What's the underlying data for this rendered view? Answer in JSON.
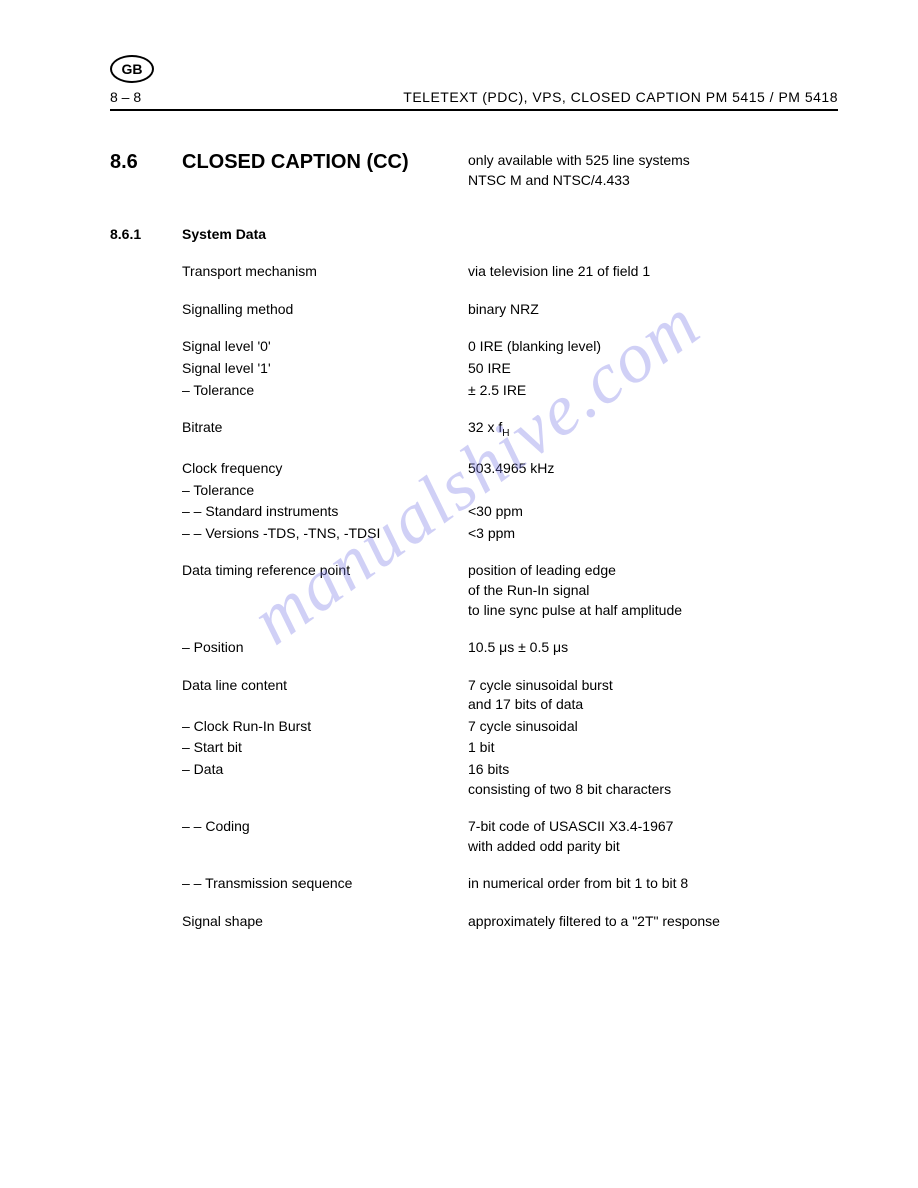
{
  "header": {
    "badge": "GB",
    "page_num": "8 – 8",
    "title": "TELETEXT (PDC), VPS, CLOSED CAPTION   PM 5415 / PM 5418"
  },
  "section": {
    "num": "8.6",
    "title": "CLOSED CAPTION (CC)",
    "note_line1": "only available with 525 line systems",
    "note_line2": "NTSC M and NTSC/4.433"
  },
  "subsection": {
    "num": "8.6.1",
    "title": "System Data"
  },
  "rows": {
    "transport_label": "Transport mechanism",
    "transport_value": "via television line 21 of field 1",
    "signalling_label": "Signalling method",
    "signalling_value": "binary NRZ",
    "level0_label": "Signal level '0'",
    "level0_value": "0 IRE (blanking level)",
    "level1_label": "Signal level '1'",
    "level1_value": "50 IRE",
    "tolerance_label": "–  Tolerance",
    "tolerance_value": "± 2.5 IRE",
    "bitrate_label": "Bitrate",
    "bitrate_value_pre": "32 x f",
    "bitrate_value_sub": "H",
    "clockfreq_label": "Clock frequency",
    "clockfreq_value": "503.4965 kHz",
    "tol2_label": "–  Tolerance",
    "tol2_value": "",
    "std_label": "– –    Standard instruments",
    "std_value": "<30 ppm",
    "ver_label": "– –    Versions -TDS, -TNS, -TDSI",
    "ver_value": "<3 ppm",
    "timing_label": "Data timing reference point",
    "timing_value1": "position of leading edge",
    "timing_value2": "of the Run-In signal",
    "timing_value3": "to line sync pulse at half amplitude",
    "position_label": "–  Position",
    "position_value": "10.5 μs  ± 0.5 μs",
    "content_label": "Data line content",
    "content_value1": "7 cycle sinusoidal burst",
    "content_value2": "and 17 bits of data",
    "runin_label": "–  Clock Run-In Burst",
    "runin_value": "7 cycle sinusoidal",
    "startbit_label": "–  Start bit",
    "startbit_value": "1 bit",
    "data_label": "–  Data",
    "data_value1": "16 bits",
    "data_value2": "consisting of two 8 bit characters",
    "coding_label": "– –    Coding",
    "coding_value1": "7-bit code of USASCII X3.4-1967",
    "coding_value2": "with added odd parity bit",
    "trans_label": "– –    Transmission sequence",
    "trans_value": "in numerical order from bit 1 to bit 8",
    "shape_label": "Signal shape",
    "shape_value": "approximately filtered to a \"2T\" response"
  },
  "watermark": "manualshive.com"
}
